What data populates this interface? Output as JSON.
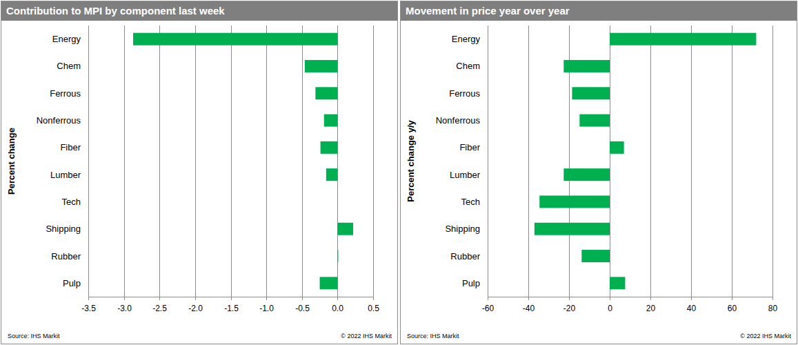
{
  "chart_data": [
    {
      "type": "bar",
      "orientation": "horizontal",
      "title": "Contribution to MPI by component last week",
      "ylabel": "Percent change",
      "source": "Source: IHS Markit",
      "copyright": "© 2022 IHS Markit",
      "categories": [
        "Energy",
        "Chem",
        "Ferrous",
        "Nonferrous",
        "Fiber",
        "Lumber",
        "Tech",
        "Shipping",
        "Rubber",
        "Pulp"
      ],
      "values": [
        -2.87,
        -0.46,
        -0.31,
        -0.19,
        -0.24,
        -0.16,
        0,
        0.22,
        0.01,
        -0.25
      ],
      "color": "#00b050",
      "xlim": [
        -3.5,
        0.5
      ],
      "xticks": [
        -3.5,
        {
          "value": -3,
          "label": "-3.0"
        },
        -2.5,
        {
          "value": -2,
          "label": "-2.0"
        },
        -1.5,
        {
          "value": -1,
          "label": "-1.0"
        },
        -0.5,
        {
          "value": 0,
          "label": "0.0"
        },
        0.5
      ],
      "grid": true
    },
    {
      "type": "bar",
      "orientation": "horizontal",
      "title": "Movement in price year over year",
      "ylabel": "Percent change y/y",
      "source": "Source: IHS Markit",
      "copyright": "© 2022 IHS Markit",
      "categories": [
        "Energy",
        "Chem",
        "Ferrous",
        "Nonferrous",
        "Fiber",
        "Lumber",
        "Tech",
        "Shipping",
        "Rubber",
        "Pulp"
      ],
      "values": [
        72,
        -22.6,
        -18.5,
        -14.8,
        7,
        -22.6,
        -34.5,
        -37,
        -13.8,
        7.6
      ],
      "color": "#00b050",
      "xlim": [
        -60,
        80
      ],
      "xticks": [
        -60,
        -40,
        -20,
        0,
        20,
        40,
        60,
        80
      ],
      "grid": true
    }
  ]
}
